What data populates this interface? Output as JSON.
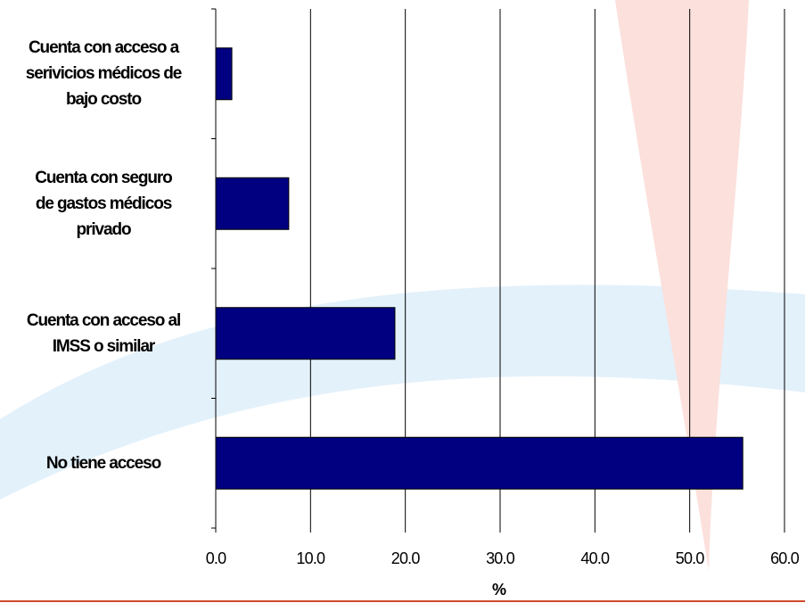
{
  "chart_data": {
    "type": "bar",
    "orientation": "horizontal",
    "categories": [
      "Cuenta con acceso a serivicios médicos de bajo costo",
      "Cuenta con seguro de gastos médicos privado",
      "Cuenta con acceso al IMSS o similar",
      "No tiene acceso"
    ],
    "category_lines": [
      [
        "Cuenta con acceso a",
        "serivicios médicos de",
        "bajo costo"
      ],
      [
        "Cuenta con seguro",
        "de gastos médicos",
        "privado"
      ],
      [
        "Cuenta con acceso al",
        "IMSS o similar"
      ],
      [
        "No tiene acceso"
      ]
    ],
    "values": [
      1.7,
      7.7,
      18.9,
      55.6
    ],
    "xlabel": "%",
    "xlim": [
      0,
      60
    ],
    "xticks": [
      "0.0",
      "10.0",
      "20.0",
      "30.0",
      "40.0",
      "50.0",
      "60.0"
    ],
    "grid": "vertical",
    "legend": "none"
  },
  "colors": {
    "bar_fill": "#000080",
    "bar_stroke": "#000000",
    "gridline": "#000000",
    "decoration_blue": "#e3f1fb",
    "decoration_red": "#fbe0dc",
    "bottom_rule": "#d14a2a"
  }
}
